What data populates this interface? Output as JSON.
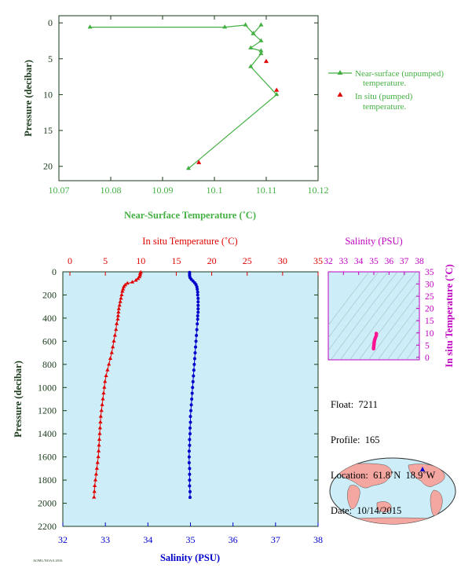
{
  "colors": {
    "near_surface": "#44b044",
    "temperature": "#e00000",
    "salinity": "#0000cc",
    "salinity_axis": "#c000c0",
    "ts_points": "#ff1493",
    "plot_bg": "#cdeef8",
    "axis_dark": "#1a3a1a",
    "world_land": "#f4a6a0",
    "world_ocean": "#cdeef8"
  },
  "chart_data": [
    {
      "type": "line",
      "id": "near-surface",
      "xlabel": "Near-Surface Temperature (˚C)",
      "ylabel": "Pressure (decibar)",
      "xlim": [
        10.07,
        10.12
      ],
      "ylim": [
        22,
        -1
      ],
      "x_ticks": [
        "10.07",
        "10.08",
        "10.09",
        "10.1",
        "10.11",
        "10.12"
      ],
      "y_ticks": [
        "0",
        "5",
        "10",
        "15",
        "20"
      ],
      "series": [
        {
          "name": "Near-surface (unpumped) temperature.",
          "marker": "triangle",
          "points": [
            [
              10.076,
              0.6
            ],
            [
              10.102,
              0.6
            ],
            [
              10.106,
              0.3
            ],
            [
              10.1075,
              1.5
            ],
            [
              10.109,
              0.3
            ],
            [
              10.1075,
              1.5
            ],
            [
              10.109,
              2.5
            ],
            [
              10.107,
              3.5
            ],
            [
              10.109,
              3.9
            ],
            [
              10.109,
              4.3
            ],
            [
              10.107,
              6.1
            ],
            [
              10.112,
              10.0
            ],
            [
              10.095,
              20.3
            ]
          ]
        },
        {
          "name": "In situ (pumped) temperature.",
          "marker": "triangle",
          "points": [
            [
              10.11,
              5.4
            ],
            [
              10.112,
              9.4
            ],
            [
              10.097,
              19.5
            ]
          ]
        }
      ],
      "legend": [
        {
          "line1": "Near-surface (unpumped)",
          "line2": "temperature."
        },
        {
          "line1": "In situ (pumped)",
          "line2": "temperature."
        }
      ]
    },
    {
      "type": "line",
      "id": "profile",
      "ylabel": "Pressure (decibar)",
      "top_xlabel": "In situ Temperature (˚C)",
      "bottom_xlabel": "Salinity (PSU)",
      "temp_lim": [
        -1,
        35
      ],
      "sal_lim": [
        32,
        38
      ],
      "ylim": [
        2200,
        0
      ],
      "temp_ticks": [
        "0",
        "5",
        "10",
        "15",
        "20",
        "25",
        "30",
        "35"
      ],
      "sal_ticks": [
        "32",
        "33",
        "34",
        "35",
        "36",
        "37",
        "38"
      ],
      "y_ticks": [
        "0",
        "200",
        "400",
        "600",
        "800",
        "1000",
        "1200",
        "1400",
        "1600",
        "1800",
        "2000",
        "2200"
      ],
      "series": [
        {
          "name": "In situ Temperature",
          "points": [
            [
              10.0,
              5
            ],
            [
              9.9,
              15
            ],
            [
              9.9,
              30
            ],
            [
              9.8,
              45
            ],
            [
              9.6,
              60
            ],
            [
              9.3,
              75
            ],
            [
              8.8,
              90
            ],
            [
              8.1,
              100
            ],
            [
              7.8,
              115
            ],
            [
              7.6,
              130
            ],
            [
              7.5,
              150
            ],
            [
              7.4,
              170
            ],
            [
              7.3,
              200
            ],
            [
              7.2,
              230
            ],
            [
              7.1,
              260
            ],
            [
              7.0,
              290
            ],
            [
              6.9,
              320
            ],
            [
              6.85,
              350
            ],
            [
              6.8,
              380
            ],
            [
              6.75,
              410
            ],
            [
              6.6,
              450
            ],
            [
              6.5,
              500
            ],
            [
              6.35,
              550
            ],
            [
              6.2,
              600
            ],
            [
              6.05,
              650
            ],
            [
              5.9,
              700
            ],
            [
              5.7,
              750
            ],
            [
              5.5,
              800
            ],
            [
              5.3,
              850
            ],
            [
              5.1,
              900
            ],
            [
              4.95,
              950
            ],
            [
              4.85,
              1000
            ],
            [
              4.75,
              1050
            ],
            [
              4.65,
              1100
            ],
            [
              4.55,
              1150
            ],
            [
              4.45,
              1200
            ],
            [
              4.35,
              1250
            ],
            [
              4.3,
              1300
            ],
            [
              4.25,
              1350
            ],
            [
              4.2,
              1400
            ],
            [
              4.15,
              1450
            ],
            [
              4.1,
              1500
            ],
            [
              4.05,
              1550
            ],
            [
              4.0,
              1600
            ],
            [
              3.9,
              1650
            ],
            [
              3.8,
              1700
            ],
            [
              3.7,
              1750
            ],
            [
              3.6,
              1800
            ],
            [
              3.5,
              1850
            ],
            [
              3.45,
              1900
            ],
            [
              3.4,
              1950
            ]
          ]
        },
        {
          "name": "Salinity",
          "points": [
            [
              34.98,
              5
            ],
            [
              34.98,
              20
            ],
            [
              34.98,
              35
            ],
            [
              34.99,
              50
            ],
            [
              35.02,
              65
            ],
            [
              35.06,
              80
            ],
            [
              35.1,
              95
            ],
            [
              35.13,
              110
            ],
            [
              35.15,
              130
            ],
            [
              35.16,
              150
            ],
            [
              35.17,
              175
            ],
            [
              35.17,
              200
            ],
            [
              35.18,
              230
            ],
            [
              35.18,
              260
            ],
            [
              35.18,
              290
            ],
            [
              35.18,
              320
            ],
            [
              35.18,
              350
            ],
            [
              35.17,
              380
            ],
            [
              35.17,
              410
            ],
            [
              35.16,
              450
            ],
            [
              35.15,
              500
            ],
            [
              35.14,
              550
            ],
            [
              35.13,
              600
            ],
            [
              35.12,
              650
            ],
            [
              35.11,
              700
            ],
            [
              35.1,
              750
            ],
            [
              35.09,
              800
            ],
            [
              35.08,
              850
            ],
            [
              35.07,
              900
            ],
            [
              35.06,
              950
            ],
            [
              35.05,
              1000
            ],
            [
              35.04,
              1050
            ],
            [
              35.03,
              1100
            ],
            [
              35.02,
              1150
            ],
            [
              35.01,
              1200
            ],
            [
              35.0,
              1250
            ],
            [
              35.0,
              1300
            ],
            [
              34.99,
              1350
            ],
            [
              34.99,
              1400
            ],
            [
              34.98,
              1450
            ],
            [
              34.98,
              1500
            ],
            [
              34.97,
              1550
            ],
            [
              34.97,
              1600
            ],
            [
              34.97,
              1650
            ],
            [
              34.98,
              1700
            ],
            [
              34.98,
              1750
            ],
            [
              34.98,
              1800
            ],
            [
              34.98,
              1850
            ],
            [
              34.99,
              1900
            ],
            [
              34.99,
              1950
            ]
          ]
        }
      ]
    },
    {
      "type": "scatter",
      "id": "ts-diagram",
      "top_xlabel": "Salinity (PSU)",
      "right_ylabel": "In situ Temperature (˚C)",
      "xlim": [
        32,
        38
      ],
      "ylim": [
        -1,
        35
      ],
      "x_ticks": [
        "32",
        "33",
        "34",
        "35",
        "36",
        "37",
        "38"
      ],
      "y_ticks": [
        "0",
        "5",
        "10",
        "15",
        "20",
        "25",
        "30",
        "35"
      ],
      "points": [
        [
          35.16,
          9.8
        ],
        [
          35.17,
          9.4
        ],
        [
          35.16,
          8.9
        ],
        [
          35.13,
          8.5
        ],
        [
          35.1,
          8.0
        ],
        [
          35.08,
          7.6
        ],
        [
          35.06,
          7.3
        ],
        [
          35.05,
          7.0
        ],
        [
          35.04,
          6.7
        ],
        [
          35.03,
          6.4
        ],
        [
          35.03,
          6.1
        ],
        [
          35.02,
          5.8
        ],
        [
          35.01,
          5.5
        ],
        [
          35.01,
          5.2
        ],
        [
          35.0,
          4.9
        ],
        [
          35.0,
          4.6
        ],
        [
          34.99,
          4.3
        ],
        [
          34.99,
          4.0
        ],
        [
          34.98,
          3.7
        ],
        [
          34.98,
          3.5
        ]
      ]
    }
  ],
  "float_info": {
    "float_label": "Float:",
    "float_value": "7211",
    "profile_label": "Profile:",
    "profile_value": "165",
    "location_label": "Location:",
    "location_value": "61.8˚N  18.9˚W",
    "date_label": "Date:",
    "date_value": "10/14/2015"
  },
  "footer_note": "AOML/NOAA 2016"
}
